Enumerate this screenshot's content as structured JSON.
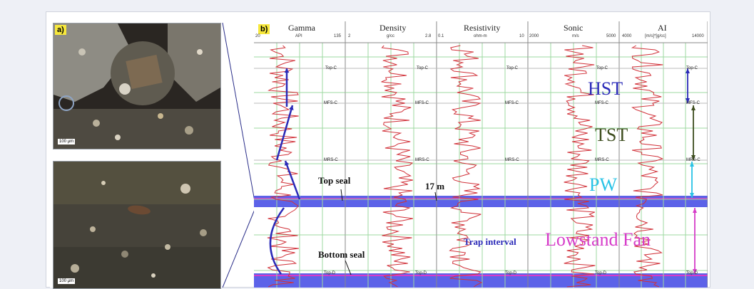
{
  "panels": {
    "a": "a)",
    "b": "b)"
  },
  "photos": {
    "scalebar_top": "100 µm",
    "scalebar_bottom": "100 µm"
  },
  "tracks": [
    {
      "name": "Gamma",
      "scale_min": "20",
      "scale_unit": "API",
      "scale_max": "135"
    },
    {
      "name": "Density",
      "scale_min": "2",
      "scale_unit": "g/cc",
      "scale_max": "2.8"
    },
    {
      "name": "Resistivity",
      "scale_min": "0.1",
      "scale_unit": "ohm-m",
      "scale_max": "10"
    },
    {
      "name": "Sonic",
      "scale_min": "2000",
      "scale_unit": "m/s",
      "scale_max": "5000"
    },
    {
      "name": "AI",
      "scale_min": "4000",
      "scale_unit": "[m/s]*[g/cc]",
      "scale_max": "14000"
    }
  ],
  "markers": {
    "top_c": "Top-C",
    "mfs_c": "MFS-C",
    "mrs_c": "MRS-C",
    "top_d": "Top-D"
  },
  "systems_tracts": {
    "hst": "HST",
    "tst": "TST",
    "pw": "PW",
    "lowstand_fan": "Lowstand Fan"
  },
  "annotations": {
    "top_seal": "Top seal",
    "bottom_seal": "Bottom seal",
    "thickness": "17 m",
    "trap_interval": "Trap interval"
  },
  "colors": {
    "hst": "#2a2ab8",
    "tst": "#3d4d1e",
    "pw": "#29c3e6",
    "lowstand_fan": "#d63cc9",
    "seal_band": "#5c62e8",
    "log_curve": "#d1323a",
    "grid": "#9ed8a0"
  }
}
